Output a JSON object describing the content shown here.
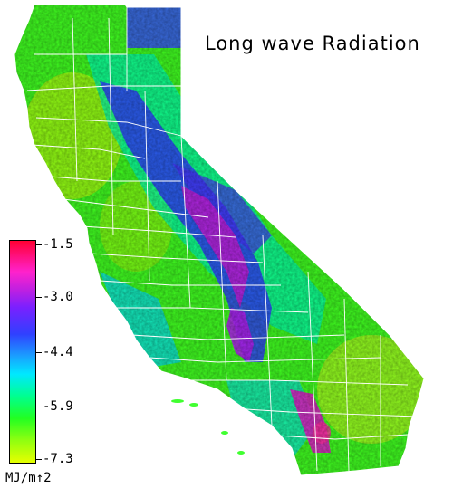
{
  "title": "Long wave Radiation",
  "legend": {
    "ticks": [
      "-1.5",
      "-3.0",
      "-4.4",
      "-5.9",
      "-7.3"
    ],
    "unit": "MJ/m↑2"
  },
  "colors": {
    "max": "#ff0033",
    "high": "#cc22e6",
    "mid_high": "#3040ff",
    "mid": "#00e0ff",
    "low_mid": "#00ff80",
    "low": "#22ff22",
    "min": "#e6ff00",
    "boundaries": "#ffffff"
  }
}
